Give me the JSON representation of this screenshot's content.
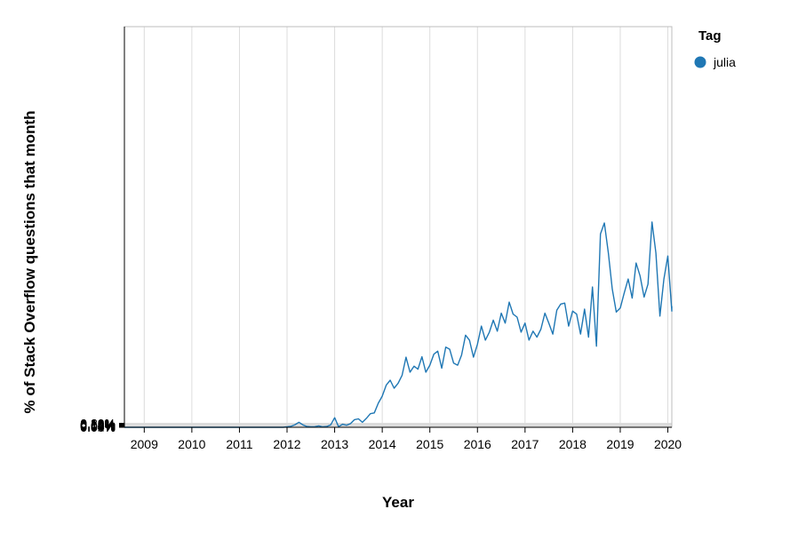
{
  "chart_data": {
    "type": "line",
    "title": "",
    "xlabel": "Year",
    "ylabel": "% of Stack Overflow questions that month",
    "ylim": [
      0,
      0.2
    ],
    "xlim": [
      "2008-08",
      "2020-02"
    ],
    "grid": true,
    "legend_position": "top-right",
    "legend_title": "Tag",
    "x_ticks": [
      "2009",
      "2010",
      "2011",
      "2012",
      "2013",
      "2014",
      "2015",
      "2016",
      "2017",
      "2018",
      "2019",
      "2020"
    ],
    "y_ticks": [
      "0.00%",
      "0.02%",
      "0.04%",
      "0.06%",
      "0.08%",
      "0.10%",
      "0.12%",
      "0.14%",
      "0.16%",
      "0.18%",
      "0.20%"
    ],
    "series": [
      {
        "name": "julia",
        "color": "#1f77b4",
        "points": [
          [
            "2008-08",
            0.0
          ],
          [
            "2009-01",
            0.0
          ],
          [
            "2010-01",
            0.0
          ],
          [
            "2011-01",
            0.0
          ],
          [
            "2011-12",
            0.0
          ],
          [
            "2012-02",
            0.0005
          ],
          [
            "2012-03",
            0.0013
          ],
          [
            "2012-04",
            0.0025
          ],
          [
            "2012-05",
            0.0012
          ],
          [
            "2012-06",
            0.0004
          ],
          [
            "2012-07",
            0.0002
          ],
          [
            "2012-08",
            0.0003
          ],
          [
            "2012-09",
            0.0007
          ],
          [
            "2012-10",
            0.0002
          ],
          [
            "2012-11",
            0.0004
          ],
          [
            "2012-12",
            0.0012
          ],
          [
            "2013-01",
            0.0048
          ],
          [
            "2013-02",
            0.0003
          ],
          [
            "2013-03",
            0.0015
          ],
          [
            "2013-04",
            0.001
          ],
          [
            "2013-05",
            0.0018
          ],
          [
            "2013-06",
            0.0038
          ],
          [
            "2013-07",
            0.0042
          ],
          [
            "2013-08",
            0.0025
          ],
          [
            "2013-09",
            0.0045
          ],
          [
            "2013-10",
            0.0068
          ],
          [
            "2013-11",
            0.0072
          ],
          [
            "2013-12",
            0.012
          ],
          [
            "2014-01",
            0.0155
          ],
          [
            "2014-02",
            0.021
          ],
          [
            "2014-03",
            0.0235
          ],
          [
            "2014-04",
            0.0195
          ],
          [
            "2014-05",
            0.022
          ],
          [
            "2014-06",
            0.026
          ],
          [
            "2014-07",
            0.035
          ],
          [
            "2014-08",
            0.0275
          ],
          [
            "2014-09",
            0.0305
          ],
          [
            "2014-10",
            0.029
          ],
          [
            "2014-11",
            0.0352
          ],
          [
            "2014-12",
            0.0275
          ],
          [
            "2015-01",
            0.031
          ],
          [
            "2015-02",
            0.0365
          ],
          [
            "2015-03",
            0.038
          ],
          [
            "2015-04",
            0.0295
          ],
          [
            "2015-05",
            0.04
          ],
          [
            "2015-06",
            0.039
          ],
          [
            "2015-07",
            0.032
          ],
          [
            "2015-08",
            0.031
          ],
          [
            "2015-09",
            0.036
          ],
          [
            "2015-10",
            0.046
          ],
          [
            "2015-11",
            0.0435
          ],
          [
            "2015-12",
            0.035
          ],
          [
            "2016-01",
            0.0415
          ],
          [
            "2016-02",
            0.0505
          ],
          [
            "2016-03",
            0.0435
          ],
          [
            "2016-04",
            0.0475
          ],
          [
            "2016-05",
            0.0535
          ],
          [
            "2016-06",
            0.048
          ],
          [
            "2016-07",
            0.057
          ],
          [
            "2016-08",
            0.052
          ],
          [
            "2016-09",
            0.0625
          ],
          [
            "2016-10",
            0.0565
          ],
          [
            "2016-11",
            0.055
          ],
          [
            "2016-12",
            0.0475
          ],
          [
            "2017-01",
            0.052
          ],
          [
            "2017-02",
            0.0435
          ],
          [
            "2017-03",
            0.048
          ],
          [
            "2017-04",
            0.045
          ],
          [
            "2017-05",
            0.049
          ],
          [
            "2017-06",
            0.057
          ],
          [
            "2017-07",
            0.052
          ],
          [
            "2017-08",
            0.0465
          ],
          [
            "2017-09",
            0.0585
          ],
          [
            "2017-10",
            0.0615
          ],
          [
            "2017-11",
            0.062
          ],
          [
            "2017-12",
            0.0505
          ],
          [
            "2018-01",
            0.058
          ],
          [
            "2018-02",
            0.0565
          ],
          [
            "2018-03",
            0.0465
          ],
          [
            "2018-04",
            0.059
          ],
          [
            "2018-05",
            0.045
          ],
          [
            "2018-06",
            0.07
          ],
          [
            "2018-07",
            0.0405
          ],
          [
            "2018-08",
            0.0965
          ],
          [
            "2018-09",
            0.102
          ],
          [
            "2018-10",
            0.087
          ],
          [
            "2018-11",
            0.069
          ],
          [
            "2018-12",
            0.0575
          ],
          [
            "2019-01",
            0.0595
          ],
          [
            "2019-02",
            0.067
          ],
          [
            "2019-03",
            0.074
          ],
          [
            "2019-04",
            0.0645
          ],
          [
            "2019-05",
            0.082
          ],
          [
            "2019-06",
            0.0755
          ],
          [
            "2019-07",
            0.065
          ],
          [
            "2019-08",
            0.0715
          ],
          [
            "2019-09",
            0.1025
          ],
          [
            "2019-10",
            0.087
          ],
          [
            "2019-11",
            0.0555
          ],
          [
            "2019-12",
            0.074
          ],
          [
            "2020-01",
            0.0855
          ],
          [
            "2020-02",
            0.058
          ],
          [
            "2020-02",
            0.0605
          ]
        ]
      }
    ]
  }
}
